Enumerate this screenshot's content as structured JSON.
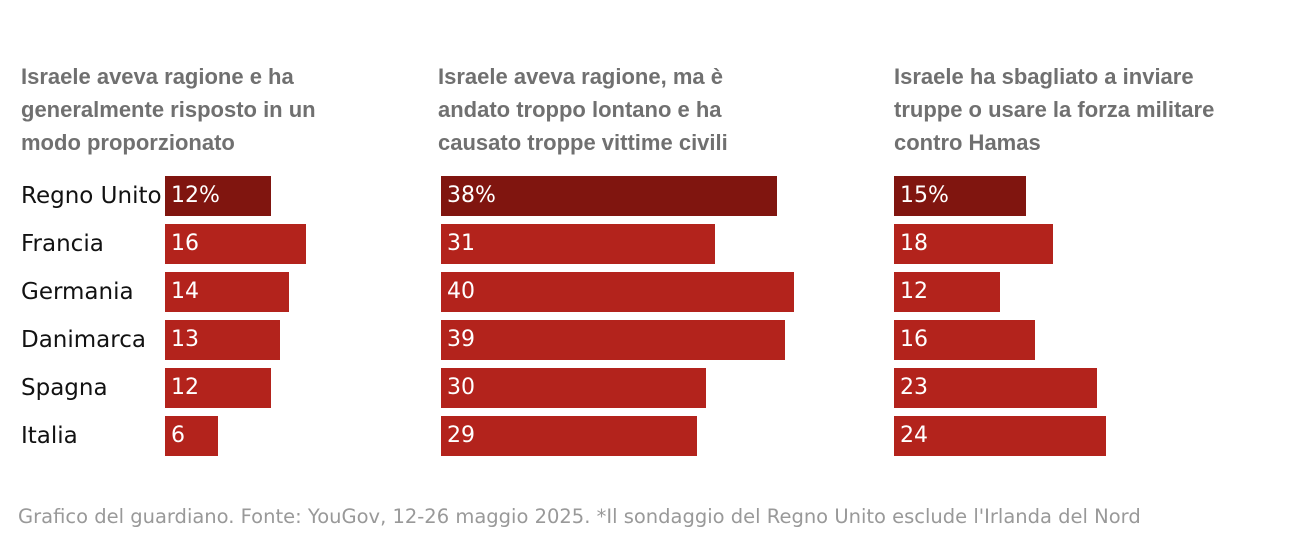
{
  "chart_data": [
    {
      "type": "bar",
      "title": "Israele aveva ragione e ha generalmente risposto in un modo proporzionato",
      "title_lines": [
        "Israele aveva ragione e ha",
        "generalmente risposto in un",
        "modo proporzionato"
      ],
      "categories": [
        "Regno Unito",
        "Francia",
        "Germania",
        "Danimarca",
        "Spagna",
        "Italia"
      ],
      "values": [
        12,
        16,
        14,
        13,
        12,
        6
      ],
      "value_labels": [
        "12%",
        "16",
        "14",
        "13",
        "12",
        "6"
      ],
      "highlight_index": 0,
      "xlim": [
        0,
        45
      ]
    },
    {
      "type": "bar",
      "title": "Israele aveva ragione, ma è andato troppo lontano e ha causato troppe vittime civili",
      "title_lines": [
        "Israele aveva ragione, ma è",
        "andato troppo lontano e ha",
        "causato troppe vittime civili"
      ],
      "categories": [
        "Regno Unito",
        "Francia",
        "Germania",
        "Danimarca",
        "Spagna",
        "Italia"
      ],
      "values": [
        38,
        31,
        40,
        39,
        30,
        29
      ],
      "value_labels": [
        "38%",
        "31",
        "40",
        "39",
        "30",
        "29"
      ],
      "highlight_index": 0,
      "xlim": [
        0,
        45
      ]
    },
    {
      "type": "bar",
      "title": "Israele ha sbagliato a inviare truppe o usare la forza militare contro Hamas",
      "title_lines": [
        "Israele ha sbagliato a inviare",
        "truppe o usare la forza militare",
        "contro Hamas"
      ],
      "categories": [
        "Regno Unito",
        "Francia",
        "Germania",
        "Danimarca",
        "Spagna",
        "Italia"
      ],
      "values": [
        15,
        18,
        12,
        16,
        23,
        24
      ],
      "value_labels": [
        "15%",
        "18",
        "12",
        "16",
        "23",
        "24"
      ],
      "highlight_index": 0,
      "xlim": [
        0,
        45
      ]
    }
  ],
  "colors": {
    "bar": "#b3231c",
    "bar_highlight": "#80150f",
    "title": "#707070",
    "label": "#121212",
    "footnote": "#999999"
  },
  "footnote": "Grafico del guardiano. Fonte: YouGov, 12-26 maggio 2025. *Il sondaggio del Regno Unito esclude l'Irlanda del Nord"
}
